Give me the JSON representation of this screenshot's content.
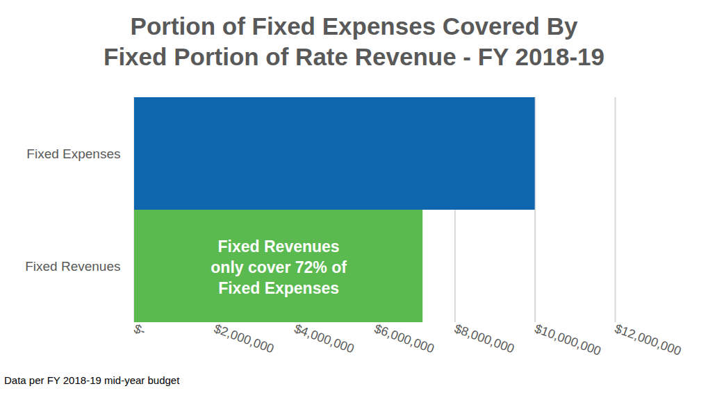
{
  "chart_data": {
    "type": "bar",
    "orientation": "horizontal",
    "title": "Portion of Fixed Expenses Covered By\nFixed Portion of Rate Revenue - FY 2018-19",
    "caption": "Data per FY 2018-19 mid-year budget",
    "categories": [
      "Fixed Expenses",
      "Fixed Revenues"
    ],
    "values": [
      10000000,
      7200000
    ],
    "colors": [
      "#0e67ae",
      "#5ab94f"
    ],
    "xlim": [
      0,
      12000000
    ],
    "xticks": [
      {
        "value": 0,
        "label": "$-"
      },
      {
        "value": 2000000,
        "label": "$2,000,000"
      },
      {
        "value": 4000000,
        "label": "$4,000,000"
      },
      {
        "value": 6000000,
        "label": "$6,000,000"
      },
      {
        "value": 8000000,
        "label": "$8,000,000"
      },
      {
        "value": 10000000,
        "label": "$10,000,000"
      },
      {
        "value": 12000000,
        "label": "$12,000,000"
      }
    ],
    "grid": true,
    "annotations": [
      {
        "text": "Fixed Revenues\nonly cover 72% of\nFixed Expenses",
        "category": "Fixed Revenues"
      }
    ]
  }
}
